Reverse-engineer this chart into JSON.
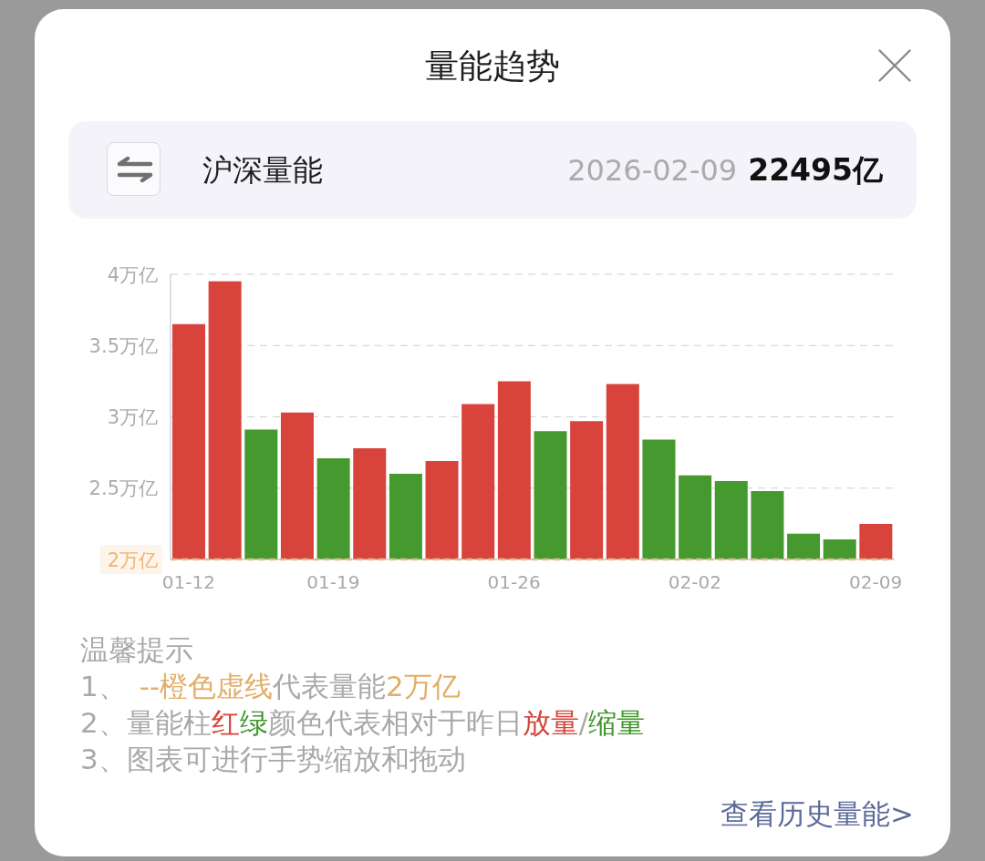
{
  "chart_data": {
    "type": "bar",
    "title": "量能趋势",
    "subtitle": "沪深量能",
    "annotations": [
      "2026-02-09",
      "22495亿",
      "温馨提示",
      "1、",
      "--橙色虚线",
      "代表量能",
      "2万亿",
      "2、量能柱",
      "红",
      "绿",
      "颜色代表相对于昨日",
      "放量",
      "/",
      "缩量",
      "3、图表可进行手势缩放和拖动",
      "查看历史量能>"
    ],
    "categories": [
      "01-12",
      null,
      null,
      null,
      "01-19",
      null,
      null,
      null,
      null,
      "01-26",
      null,
      null,
      null,
      null,
      "02-02",
      null,
      null,
      null,
      null,
      "02-09"
    ],
    "values": [
      3.65,
      3.95,
      2.91,
      3.03,
      2.71,
      2.78,
      2.6,
      2.69,
      3.09,
      3.25,
      2.9,
      2.97,
      3.23,
      2.84,
      2.59,
      2.55,
      2.48,
      2.18,
      2.14,
      2.2495
    ],
    "colors": [
      "#d8433b",
      "#d8433b",
      "#46992e",
      "#d8433b",
      "#46992e",
      "#d8433b",
      "#46992e",
      "#d8433b",
      "#d8433b",
      "#d8433b",
      "#46992e",
      "#d8433b",
      "#d8433b",
      "#46992e",
      "#46992e",
      "#46992e",
      "#46992e",
      "#46992e",
      "#46992e",
      "#d8433b"
    ],
    "ylim": [
      2,
      4
    ],
    "yticks": [
      {
        "value": 2,
        "label": "2万亿"
      },
      {
        "value": 2.5,
        "label": "2.5万亿"
      },
      {
        "value": 3,
        "label": "3万亿"
      },
      {
        "value": 3.5,
        "label": "3.5万亿"
      },
      {
        "value": 4,
        "label": "4万亿"
      }
    ],
    "grid": "y",
    "ref_lines": [
      {
        "axis": "y",
        "value": 2,
        "color": "#f2b46e",
        "line_style": "dashed"
      }
    ]
  }
}
